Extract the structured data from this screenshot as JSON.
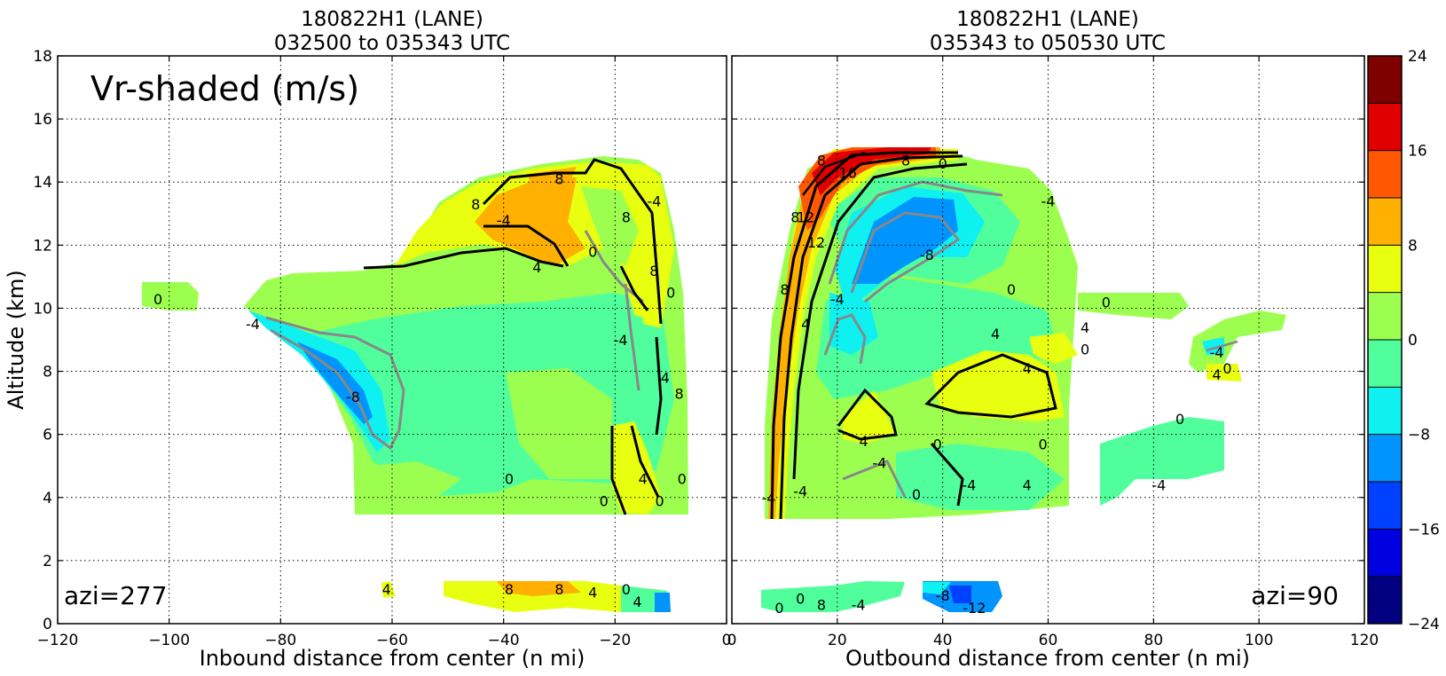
{
  "chart_data": [
    {
      "type": "heatmap",
      "title": "180822H1 (LANE)",
      "subtitle": "032500 to 035343 UTC",
      "panel_label": "Vr-shaded (m/s)",
      "azimuth_label": "azi=277",
      "xlabel": "Inbound distance from center (n mi)",
      "ylabel": "Altitude (km)",
      "xlim": [
        -120,
        0
      ],
      "ylim": [
        0,
        18
      ],
      "xticks": [
        "−120",
        "−100",
        "−80",
        "−60",
        "−40",
        "−20",
        "0"
      ],
      "yticks": [
        "0",
        "2",
        "4",
        "6",
        "8",
        "10",
        "12",
        "14",
        "16",
        "18"
      ],
      "grid": true,
      "contour_labels": [
        {
          "text": "0",
          "x": -102,
          "y": 10.3
        },
        {
          "text": "-4",
          "x": -85,
          "y": 9.5
        },
        {
          "text": "-8",
          "x": -67,
          "y": 7.2
        },
        {
          "text": "0",
          "x": -39,
          "y": 4.6
        },
        {
          "text": "0",
          "x": -22,
          "y": 3.9
        },
        {
          "text": "-4",
          "x": -40,
          "y": 12.8
        },
        {
          "text": "8",
          "x": -45,
          "y": 13.3
        },
        {
          "text": "8",
          "x": -30,
          "y": 14.1
        },
        {
          "text": "4",
          "x": -34,
          "y": 11.3
        },
        {
          "text": "0",
          "x": -24,
          "y": 11.8
        },
        {
          "text": "8",
          "x": -18,
          "y": 12.9
        },
        {
          "text": "-4",
          "x": -13,
          "y": 13.4
        },
        {
          "text": "8",
          "x": -13,
          "y": 11.2
        },
        {
          "text": "0",
          "x": -10,
          "y": 10.5
        },
        {
          "text": "-4",
          "x": -19,
          "y": 9.0
        },
        {
          "text": "4",
          "x": -11,
          "y": 7.8
        },
        {
          "text": "8",
          "x": -8.5,
          "y": 7.3
        },
        {
          "text": "4",
          "x": -15,
          "y": 4.6
        },
        {
          "text": "0",
          "x": -8,
          "y": 4.6
        },
        {
          "text": "0",
          "x": -12,
          "y": 3.9
        },
        {
          "text": "4",
          "x": -61,
          "y": 1.1
        },
        {
          "text": "8",
          "x": -39,
          "y": 1.1
        },
        {
          "text": "8",
          "x": -30,
          "y": 1.1
        },
        {
          "text": "4",
          "x": -24,
          "y": 1.0
        },
        {
          "text": "0",
          "x": -18,
          "y": 1.1
        },
        {
          "text": "4",
          "x": -16,
          "y": 0.7
        }
      ]
    },
    {
      "type": "heatmap",
      "title": "180822H1 (LANE)",
      "subtitle": "035343 to 050530 UTC",
      "azimuth_label": "azi=90",
      "xlabel": "Outbound distance from center (n mi)",
      "ylabel": "",
      "xlim": [
        0,
        120
      ],
      "ylim": [
        0,
        18
      ],
      "xticks": [
        "0",
        "20",
        "40",
        "60",
        "80",
        "100",
        "120"
      ],
      "grid": true,
      "contour_labels": [
        {
          "text": "8",
          "x": 17,
          "y": 14.7
        },
        {
          "text": "16",
          "x": 22,
          "y": 14.3
        },
        {
          "text": "8",
          "x": 33,
          "y": 14.7
        },
        {
          "text": "0",
          "x": 40,
          "y": 14.6
        },
        {
          "text": "12",
          "x": 14,
          "y": 12.9
        },
        {
          "text": "8",
          "x": 12,
          "y": 12.9
        },
        {
          "text": "12",
          "x": 16,
          "y": 12.1
        },
        {
          "text": "-4",
          "x": 60,
          "y": 13.4
        },
        {
          "text": "-8",
          "x": 37,
          "y": 11.7
        },
        {
          "text": "8",
          "x": 10,
          "y": 10.6
        },
        {
          "text": "-4",
          "x": 20,
          "y": 10.3
        },
        {
          "text": "4",
          "x": 14,
          "y": 9.5
        },
        {
          "text": "0",
          "x": 53,
          "y": 10.6
        },
        {
          "text": "0",
          "x": 71,
          "y": 10.2
        },
        {
          "text": "4",
          "x": 67,
          "y": 9.4
        },
        {
          "text": "0",
          "x": 67,
          "y": 8.7
        },
        {
          "text": "4",
          "x": 50,
          "y": 9.2
        },
        {
          "text": "4",
          "x": 56,
          "y": 8.1
        },
        {
          "text": "4",
          "x": 25,
          "y": 5.8
        },
        {
          "text": "-4",
          "x": 28,
          "y": 5.1
        },
        {
          "text": "0",
          "x": 39,
          "y": 5.7
        },
        {
          "text": "0",
          "x": 59,
          "y": 5.7
        },
        {
          "text": "-4",
          "x": 45,
          "y": 4.4
        },
        {
          "text": "4",
          "x": 56,
          "y": 4.4
        },
        {
          "text": "-4",
          "x": 13,
          "y": 4.2
        },
        {
          "text": "0",
          "x": 35,
          "y": 4.1
        },
        {
          "text": "-4",
          "x": 7,
          "y": 4.0
        },
        {
          "text": "-4",
          "x": 81,
          "y": 4.4
        },
        {
          "text": "0",
          "x": 85,
          "y": 6.5
        },
        {
          "text": "-4",
          "x": 92,
          "y": 8.6
        },
        {
          "text": "0",
          "x": 94,
          "y": 8.1
        },
        {
          "text": "4",
          "x": 92,
          "y": 7.9
        },
        {
          "text": "0",
          "x": 9,
          "y": 0.5
        },
        {
          "text": "0",
          "x": 13,
          "y": 0.8
        },
        {
          "text": "8",
          "x": 17,
          "y": 0.6
        },
        {
          "text": "-4",
          "x": 24,
          "y": 0.6
        },
        {
          "text": "-8",
          "x": 40,
          "y": 0.9
        },
        {
          "text": "-12",
          "x": 46,
          "y": 0.5
        }
      ]
    }
  ],
  "colorbar": {
    "ticks": [
      "24",
      "16",
      "8",
      "0",
      "−8",
      "−16",
      "−24"
    ],
    "levels": [
      -24,
      -20,
      -16,
      -12,
      -8,
      -4,
      0,
      4,
      8,
      12,
      16,
      20,
      24
    ],
    "colors": [
      "#000080",
      "#0000e0",
      "#0040ff",
      "#0094ff",
      "#0ff0f0",
      "#50ff9c",
      "#9cff50",
      "#e8ff10",
      "#ffb000",
      "#ff5800",
      "#e00000",
      "#800000"
    ]
  }
}
